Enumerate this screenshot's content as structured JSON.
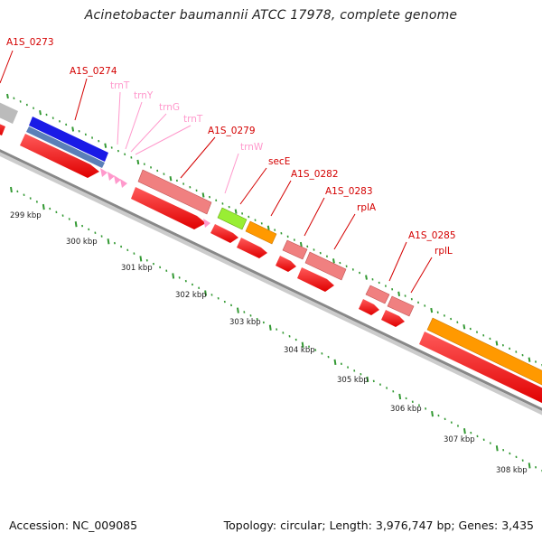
{
  "title": "Acinetobacter baumannii ATCC 17978, complete genome",
  "footer": {
    "accession": "Accession: NC_009085",
    "summary": "Topology: circular; Length: 3,976,747 bp; Genes: 3,435"
  },
  "colors": {
    "gene_label": "#d40000",
    "trna_label": "#ff99cc",
    "tick": "#339933",
    "backbone": "#888888"
  },
  "gene_labels": [
    "A1S_0273",
    "A1S_0274",
    "trnT",
    "trnY",
    "trnG",
    "trnT",
    "A1S_0279",
    "trnW",
    "secE",
    "A1S_0282",
    "A1S_0283",
    "rplA",
    "A1S_0285",
    "rplL"
  ],
  "scale_labels": [
    "299 kbp",
    "300 kbp",
    "301 kbp",
    "302 kbp",
    "303 kbp",
    "304 kbp",
    "305 kbp",
    "306 kbp",
    "307 kbp",
    "308 kbp"
  ]
}
